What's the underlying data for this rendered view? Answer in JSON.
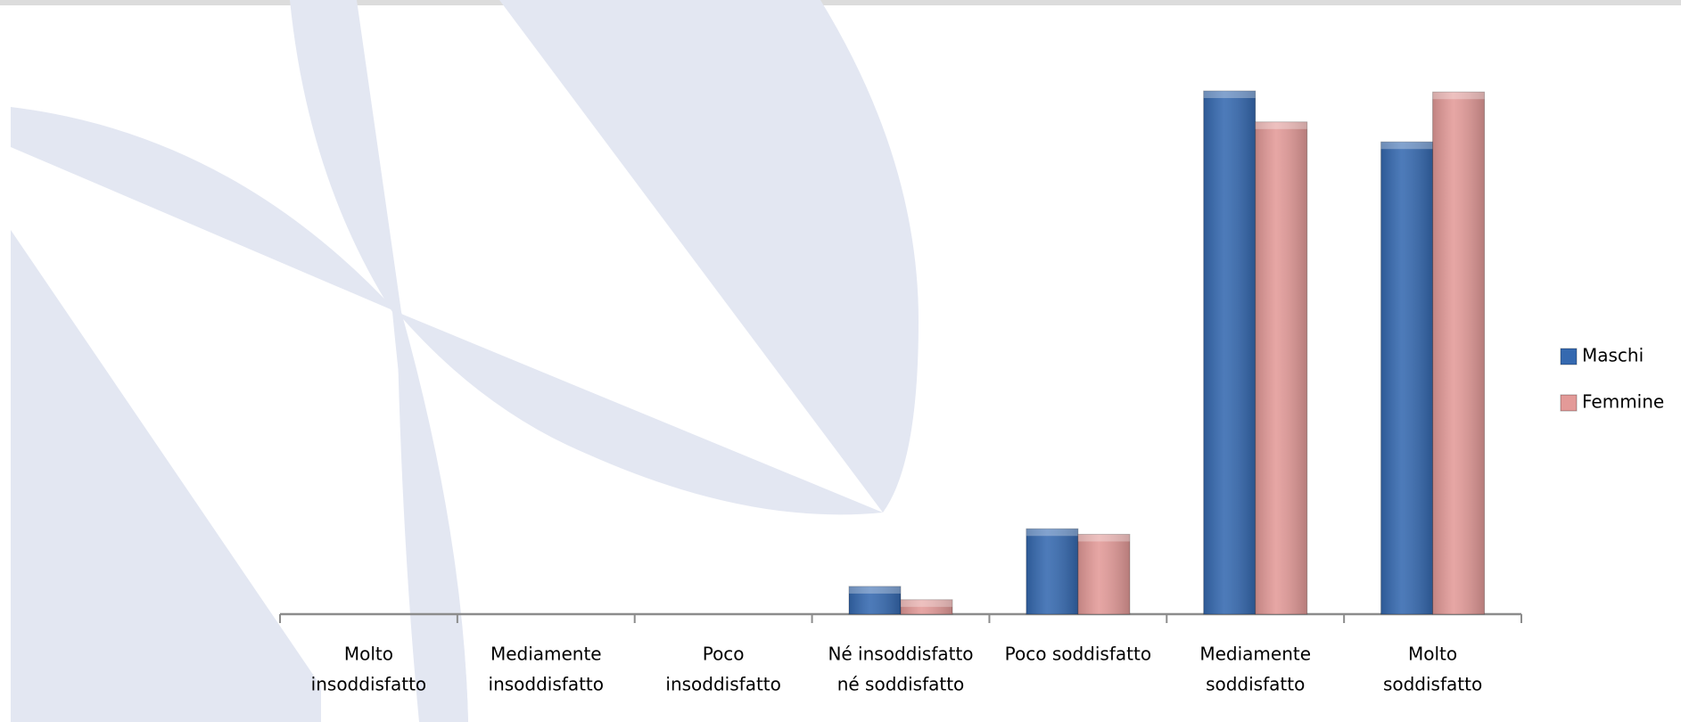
{
  "chart_data": {
    "type": "bar",
    "categories": [
      [
        "Molto",
        "insoddisfatto"
      ],
      [
        "Mediamente",
        "insoddisfatto"
      ],
      [
        "Poco",
        "insoddisfatto"
      ],
      [
        "Né insoddisfatto",
        "né soddisfatto"
      ],
      [
        "Poco soddisfatto"
      ],
      [
        "Mediamente",
        "soddisfatto"
      ],
      [
        "Molto",
        "soddisfatto"
      ]
    ],
    "series": [
      {
        "name": "Maschi",
        "color": "#3569b0",
        "values": [
          0,
          0,
          0,
          2.5,
          7.7,
          47.2,
          42.6
        ]
      },
      {
        "name": "Femmine",
        "color": "#e39a98",
        "values": [
          0,
          0,
          0,
          1.3,
          7.2,
          44.4,
          47.1
        ]
      }
    ],
    "legend": "right"
  }
}
